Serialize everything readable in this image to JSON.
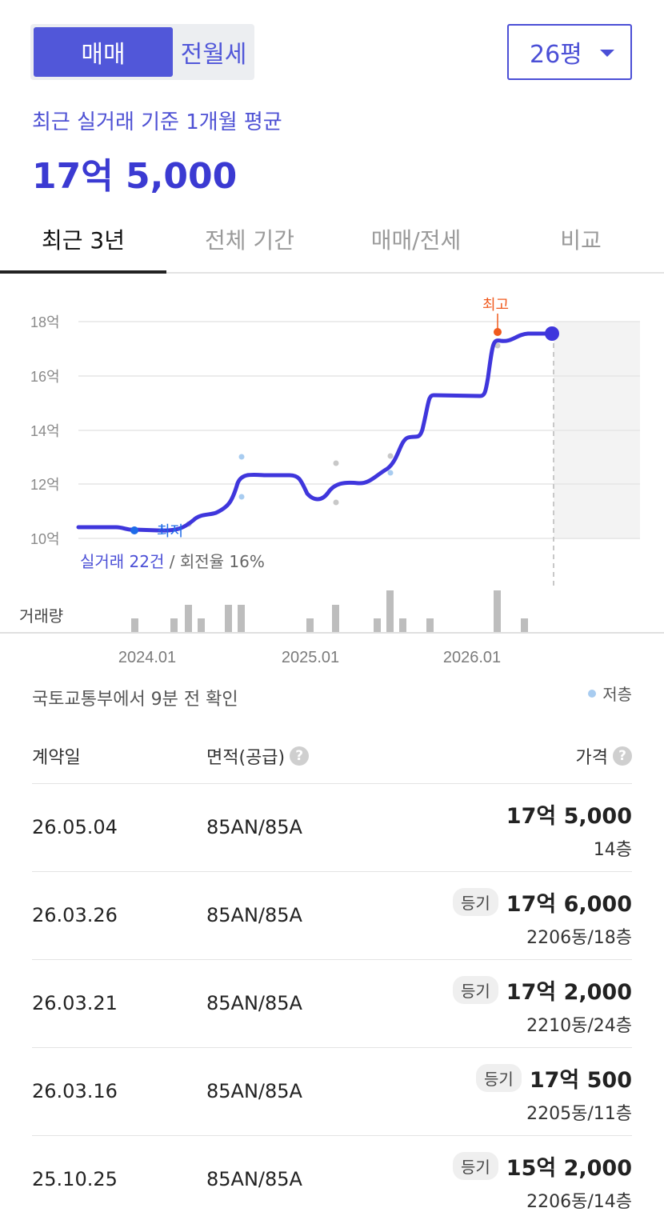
{
  "toggle": {
    "active": "매매",
    "inactive": "전월세"
  },
  "size_select": {
    "value": "26평"
  },
  "summary": {
    "label": "최근 실거래 기준 1개월 평균",
    "price": "17억 5,000"
  },
  "tabs": [
    {
      "label": "최근 3년",
      "active": true
    },
    {
      "label": "전체 기간",
      "active": false
    },
    {
      "label": "매매/전세",
      "active": false
    },
    {
      "label": "비교",
      "active": false
    }
  ],
  "chart_data": {
    "type": "line",
    "y_ticks": [
      "18억",
      "16억",
      "14억",
      "12억",
      "10억"
    ],
    "x_ticks": [
      "2024.01",
      "2025.01",
      "2026.01"
    ],
    "ylim": [
      10,
      18
    ],
    "ylabel_unit": "억",
    "high_label": "최고",
    "low_label": "최저",
    "legend": {
      "low_floor": "저층"
    },
    "colors": {
      "line": "#3f36dc",
      "high": "#f05a1e",
      "low_dot": "#a8ccf0",
      "scatter": "#c8c8c8",
      "volume": "#bdbdbd"
    }
  },
  "deal_summary": {
    "count": "실거래 22건",
    "rest": " / 회전율 16%"
  },
  "volume_label": "거래량",
  "source": "국토교통부에서 9분 전 확인",
  "table": {
    "headers": {
      "date": "계약일",
      "area": "면적(공급)",
      "price": "가격"
    },
    "rows": [
      {
        "date": "26.05.04",
        "area": "85AN/85A",
        "badge": "",
        "price": "17억 5,000",
        "floor": "14층"
      },
      {
        "date": "26.03.26",
        "area": "85AN/85A",
        "badge": "등기",
        "price": "17억 6,000",
        "floor": "2206동/18층"
      },
      {
        "date": "26.03.21",
        "area": "85AN/85A",
        "badge": "등기",
        "price": "17억 2,000",
        "floor": "2210동/24층"
      },
      {
        "date": "26.03.16",
        "area": "85AN/85A",
        "badge": "등기",
        "price": "17억 500",
        "floor": "2205동/11층"
      },
      {
        "date": "25.10.25",
        "area": "85AN/85A",
        "badge": "등기",
        "price": "15억 2,000",
        "floor": "2206동/14층"
      }
    ]
  }
}
